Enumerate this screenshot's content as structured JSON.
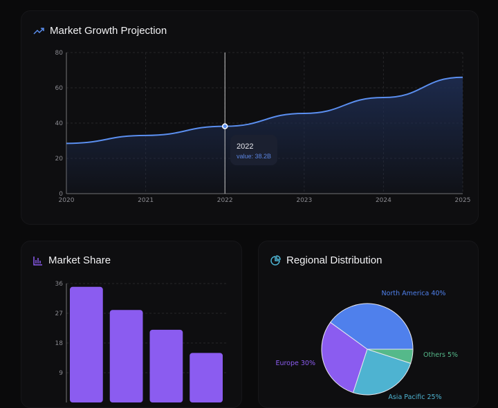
{
  "colors": {
    "line": "#5b8ff0",
    "bar": "#8b5cf0",
    "pie": [
      "#4f80ec",
      "#8b5cf0",
      "#4eb3d1",
      "#55b98a"
    ]
  },
  "chart_data": [
    {
      "type": "area",
      "title": "Market Growth Projection",
      "icon": "trending-up-icon",
      "x": [
        "2020",
        "2021",
        "2022",
        "2023",
        "2024",
        "2025"
      ],
      "values": [
        28.5,
        33,
        38.2,
        45.5,
        54.5,
        66
      ],
      "ylim": [
        0,
        80
      ],
      "yticks": [
        "0",
        "20",
        "40",
        "60",
        "80"
      ],
      "grid": true,
      "tooltip": {
        "label": "2022",
        "value": "value: 38.2B"
      }
    },
    {
      "type": "bar",
      "title": "Market Share",
      "icon": "bar-chart-icon",
      "values": [
        35,
        28,
        22,
        15
      ],
      "ylim": [
        0,
        36
      ],
      "yticks": [
        "9",
        "18",
        "27",
        "36"
      ],
      "grid": true
    },
    {
      "type": "pie",
      "title": "Regional Distribution",
      "icon": "pie-chart-icon",
      "slices": [
        {
          "label": "North America 40%",
          "value": 40
        },
        {
          "label": "Europe 30%",
          "value": 30
        },
        {
          "label": "Asia Pacific 25%",
          "value": 25
        },
        {
          "label": "Others 5%",
          "value": 5
        }
      ]
    }
  ]
}
